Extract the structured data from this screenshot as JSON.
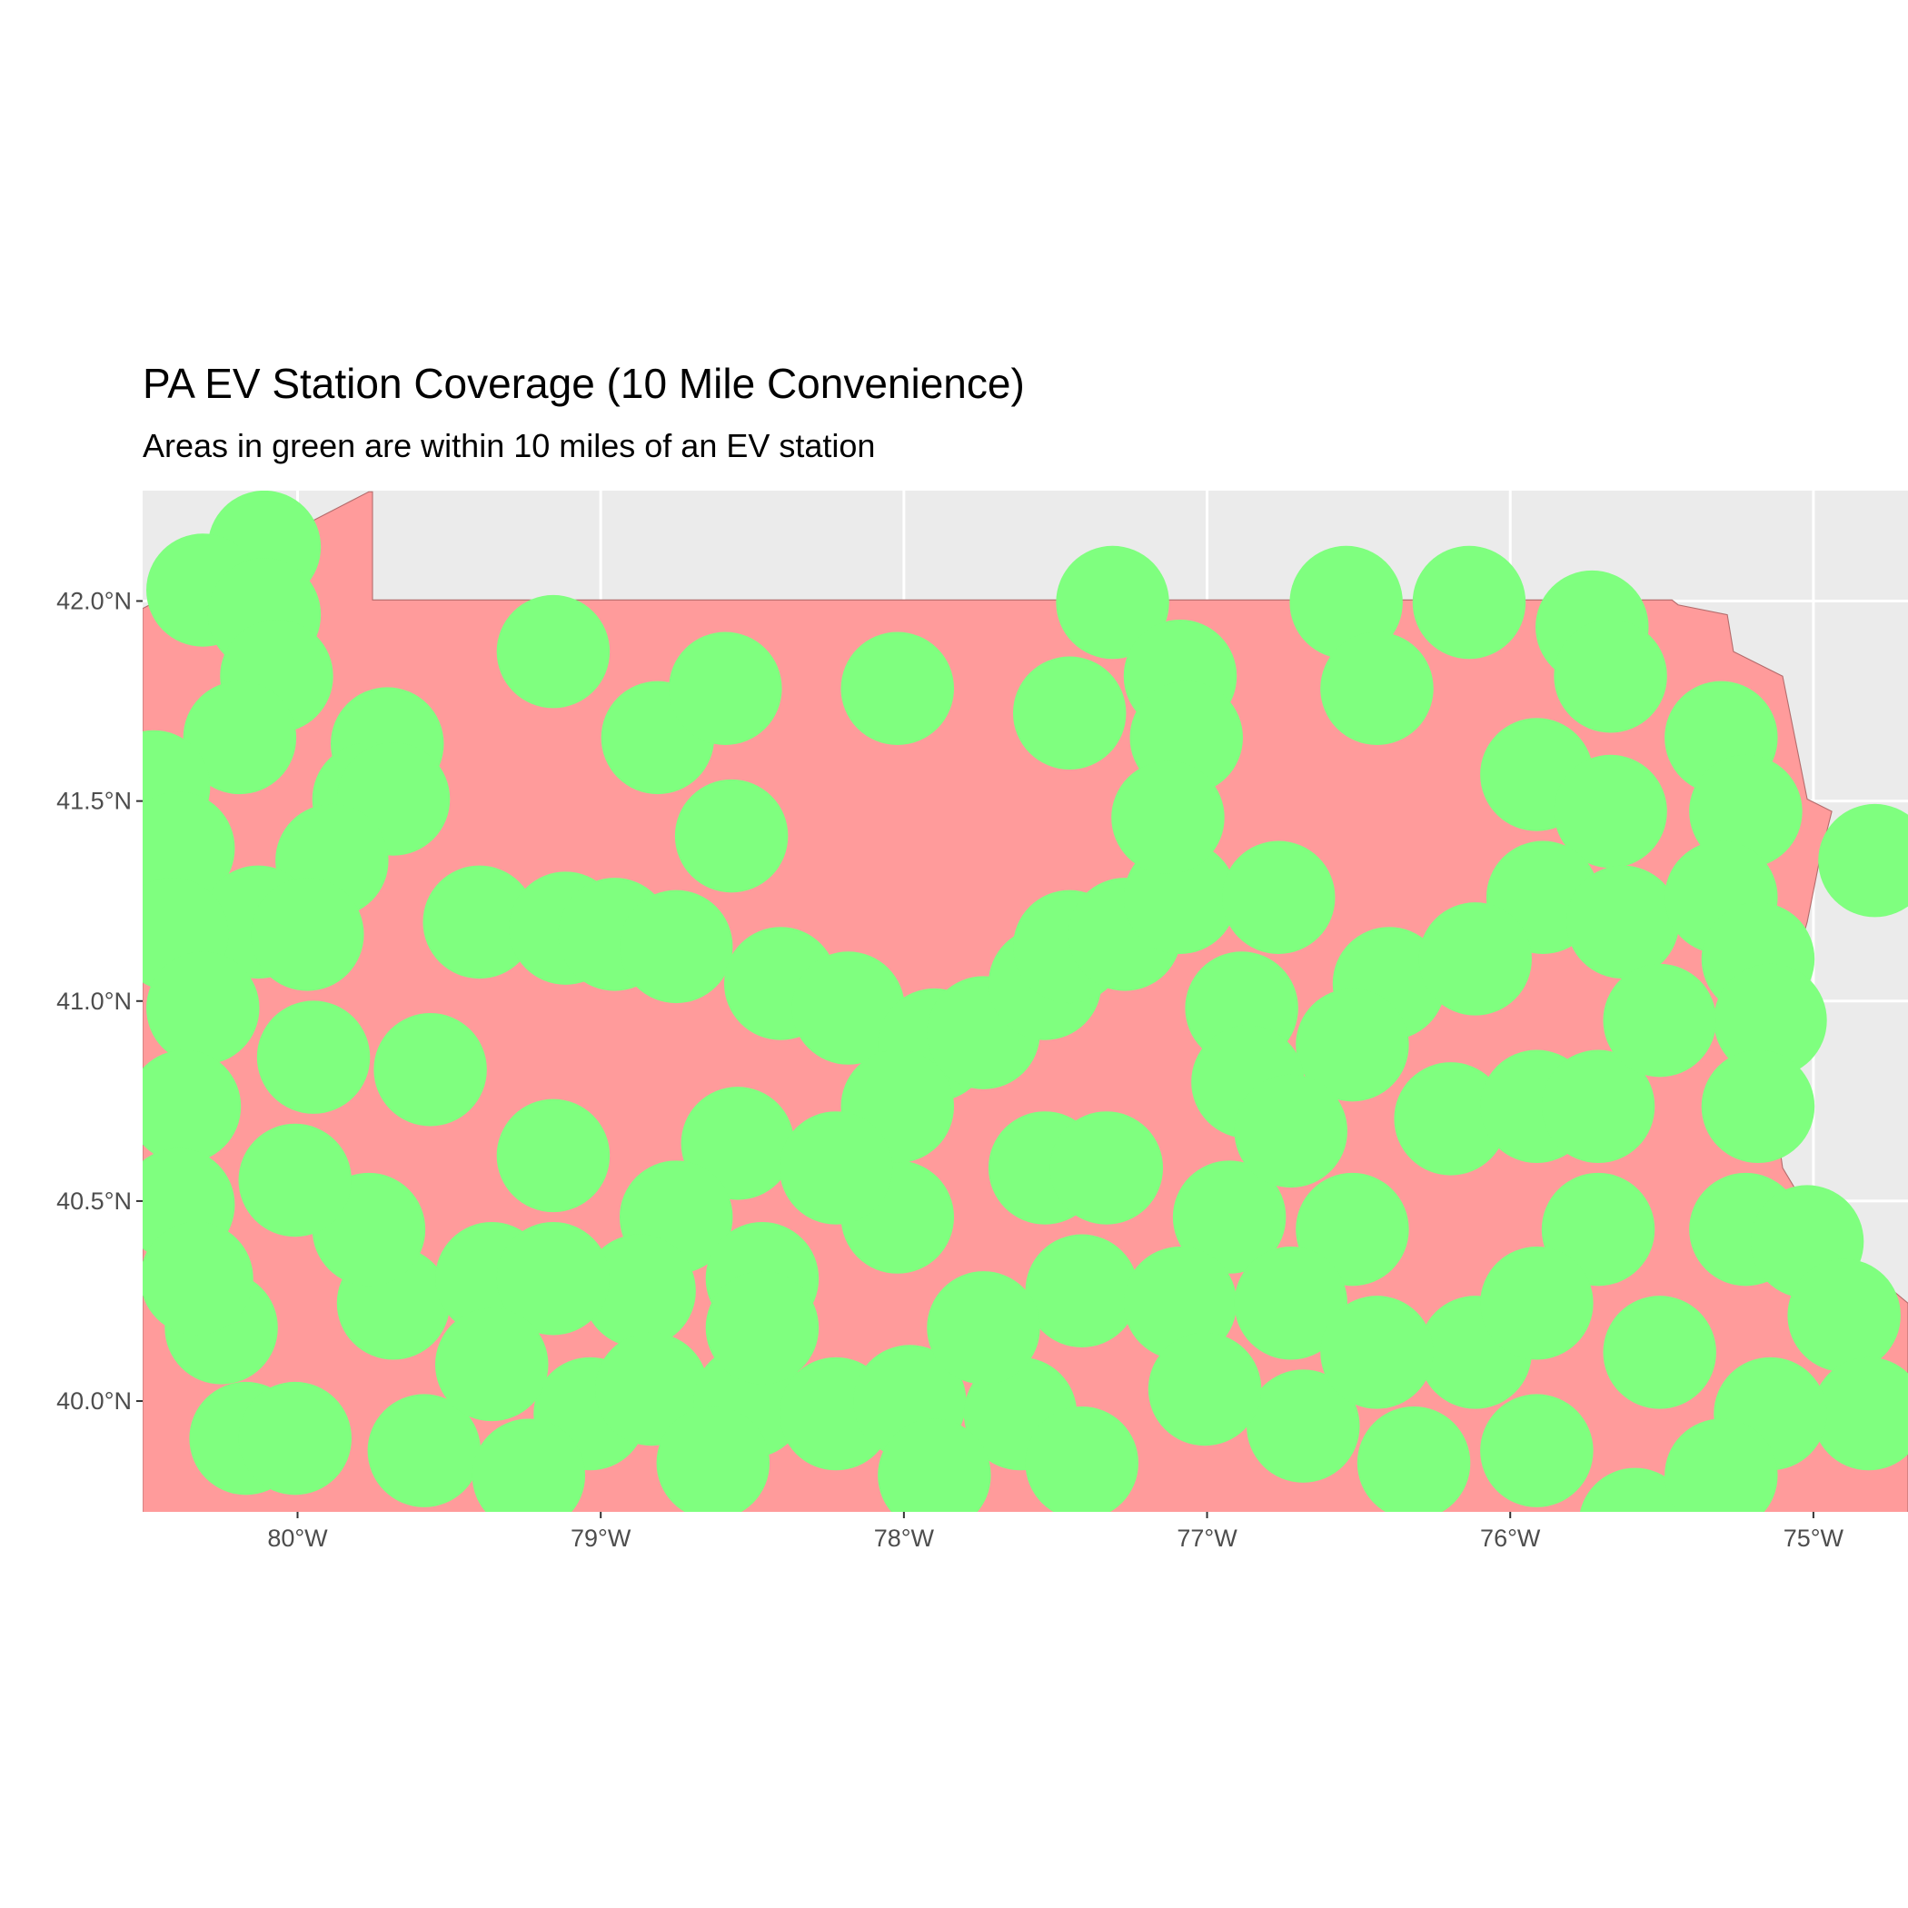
{
  "chart_data": {
    "type": "map",
    "title": "PA EV Station Coverage (10 Mile Convenience)",
    "subtitle": "Areas in green are within 10 miles of an EV station",
    "xlim": [
      -80.511,
      -74.688
    ],
    "ylim": [
      39.723,
      42.276
    ],
    "xticks": [
      {
        "value": -80,
        "label": "80°W"
      },
      {
        "value": -79,
        "label": "79°W"
      },
      {
        "value": -78,
        "label": "78°W"
      },
      {
        "value": -77,
        "label": "77°W"
      },
      {
        "value": -76,
        "label": "76°W"
      },
      {
        "value": -75,
        "label": "75°W"
      }
    ],
    "yticks": [
      {
        "value": 40.0,
        "label": "40.0°N"
      },
      {
        "value": 40.5,
        "label": "40.5°N"
      },
      {
        "value": 41.0,
        "label": "41.0°N"
      },
      {
        "value": 41.5,
        "label": "41.5°N"
      },
      {
        "value": 42.0,
        "label": "42.0°N"
      }
    ],
    "grid": true
  }
}
